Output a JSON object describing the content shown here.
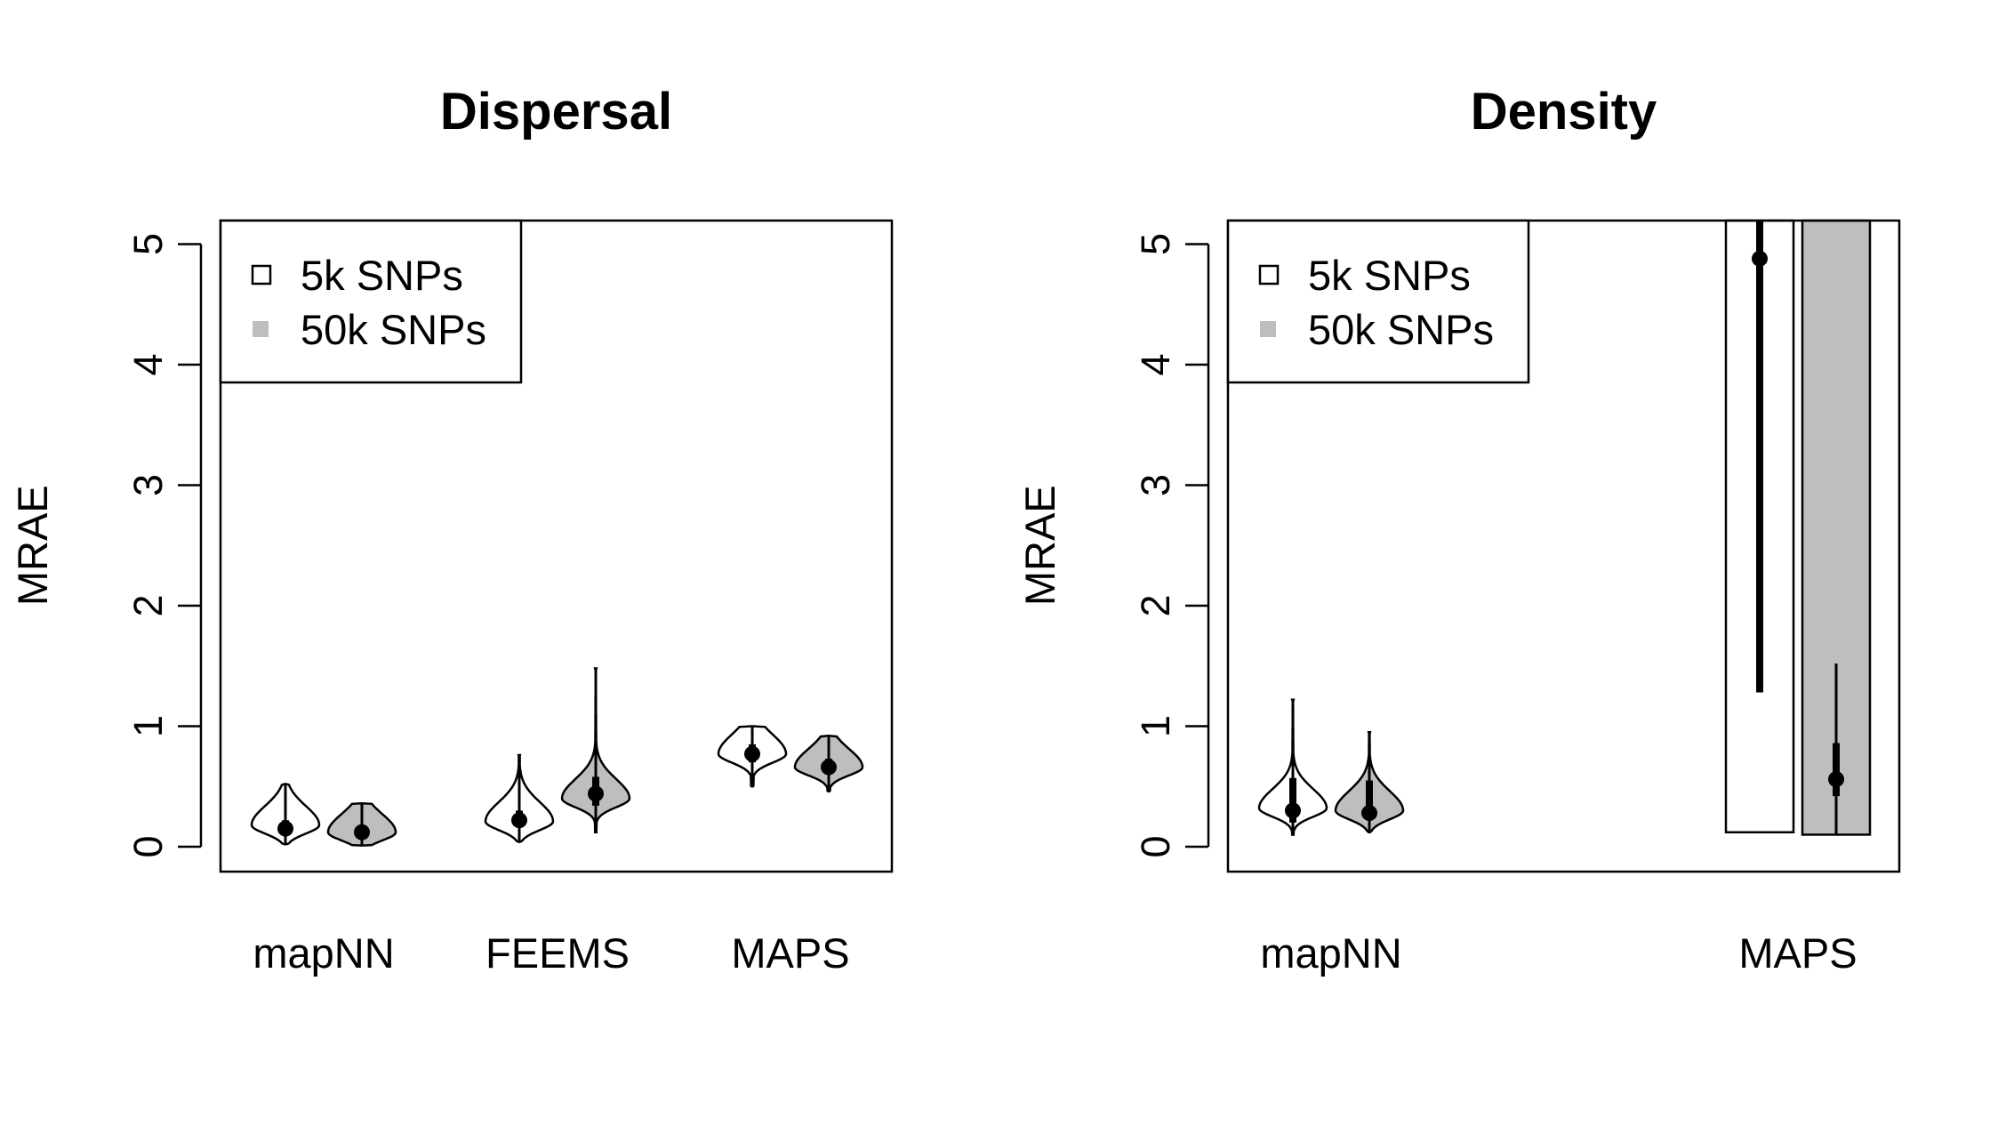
{
  "chart_data": [
    {
      "type": "violin",
      "title": "Dispersal",
      "ylabel": "MRAE",
      "xlabel": "",
      "ylim": [
        0,
        5
      ],
      "yticks": [
        "0",
        "1",
        "2",
        "3",
        "4",
        "5"
      ],
      "categories": [
        "mapNN",
        "FEEMS",
        "MAPS"
      ],
      "legend": {
        "position": "top-left",
        "entries": [
          "5k SNPs",
          "50k SNPs"
        ]
      },
      "colors": {
        "5k SNPs": "#ffffff",
        "50k SNPs": "#bebebe"
      },
      "series": [
        {
          "name": "5k SNPs",
          "groups": [
            {
              "category": "mapNN",
              "min": 0.02,
              "max": 0.52,
              "median": 0.15,
              "q1": 0.1,
              "q3": 0.22,
              "mode": 0.18,
              "width": 0.45,
              "tail": 0.35
            },
            {
              "category": "FEEMS",
              "min": 0.04,
              "max": 0.76,
              "median": 0.22,
              "q1": 0.16,
              "q3": 0.3,
              "mode": 0.21,
              "width": 0.46,
              "tail": 0.35
            },
            {
              "category": "MAPS",
              "min": 0.5,
              "max": 1.0,
              "median": 0.77,
              "q1": 0.7,
              "q3": 0.85,
              "mode": 0.77,
              "width": 0.46,
              "tail": 0.5
            }
          ]
        },
        {
          "name": "50k SNPs",
          "groups": [
            {
              "category": "mapNN",
              "min": 0.01,
              "max": 0.36,
              "median": 0.12,
              "q1": 0.09,
              "q3": 0.16,
              "mode": 0.12,
              "width": 0.43,
              "tail": 0.4
            },
            {
              "category": "FEEMS",
              "min": 0.12,
              "max": 1.48,
              "median": 0.44,
              "q1": 0.34,
              "q3": 0.58,
              "mode": 0.4,
              "width": 0.46,
              "tail": 0.3
            },
            {
              "category": "MAPS",
              "min": 0.46,
              "max": 0.92,
              "median": 0.66,
              "q1": 0.6,
              "q3": 0.73,
              "mode": 0.66,
              "width": 0.43,
              "tail": 0.5
            }
          ]
        }
      ]
    },
    {
      "type": "violin",
      "title": "Density",
      "ylabel": "MRAE",
      "xlabel": "",
      "ylim": [
        0,
        5
      ],
      "yticks": [
        "0",
        "1",
        "2",
        "3",
        "4",
        "5"
      ],
      "categories": [
        "mapNN",
        "MAPS"
      ],
      "legend": {
        "position": "top-left",
        "entries": [
          "5k SNPs",
          "50k SNPs"
        ]
      },
      "colors": {
        "5k SNPs": "#ffffff",
        "50k SNPs": "#bebebe"
      },
      "series": [
        {
          "name": "5k SNPs",
          "groups": [
            {
              "category": "mapNN",
              "min": 0.1,
              "max": 1.22,
              "median": 0.3,
              "q1": 0.2,
              "q3": 0.57,
              "mode": 0.32,
              "width": 0.45,
              "tail": 0.3
            },
            {
              "category": "MAPS",
              "min": 0.12,
              "max": 5.2,
              "median": 4.88,
              "q1": 1.28,
              "q3": 5.2,
              "mode": 2.5,
              "width": 0.45,
              "tail": 0.0,
              "shape": "rect"
            }
          ]
        },
        {
          "name": "50k SNPs",
          "groups": [
            {
              "category": "mapNN",
              "min": 0.12,
              "max": 0.95,
              "median": 0.28,
              "q1": 0.22,
              "q3": 0.55,
              "mode": 0.3,
              "width": 0.46,
              "tail": 0.3
            },
            {
              "category": "MAPS",
              "min": 0.1,
              "max": 5.2,
              "median": 0.56,
              "q1": 0.42,
              "q3": 0.86,
              "lower_whisker": 0.1,
              "upper_whisker": 1.52,
              "mode": 2.5,
              "width": 0.45,
              "tail": 0.0,
              "shape": "rect"
            }
          ]
        }
      ]
    }
  ]
}
